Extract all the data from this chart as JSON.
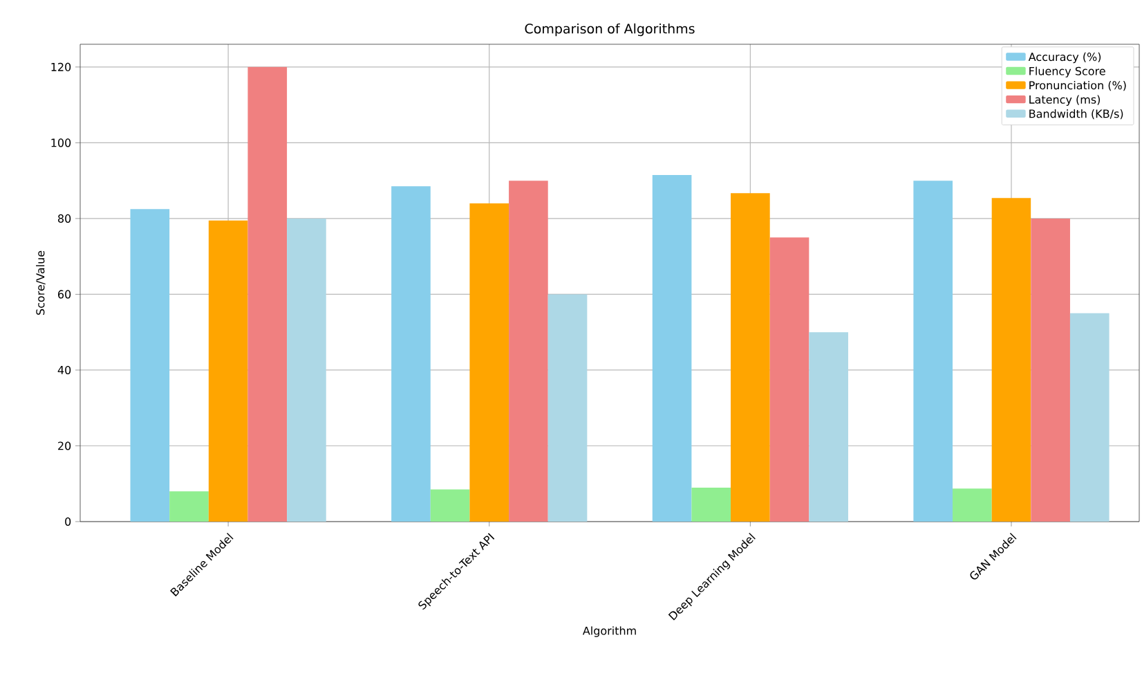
{
  "chart_data": {
    "type": "bar",
    "title": "Comparison of Algorithms",
    "xlabel": "Algorithm",
    "ylabel": "Score/Value",
    "categories": [
      "Baseline Model",
      "Speech-to-Text API",
      "Deep Learning Model",
      "GAN Model"
    ],
    "series": [
      {
        "name": "Accuracy (%)",
        "color": "#87ceeb",
        "values": [
          82.5,
          88.5,
          91.5,
          90
        ]
      },
      {
        "name": "Fluency Score",
        "color": "#90ee90",
        "values": [
          8,
          8.5,
          9,
          8.7
        ]
      },
      {
        "name": "Pronunciation (%)",
        "color": "#ffa500",
        "values": [
          79.5,
          84,
          86.7,
          85.4
        ]
      },
      {
        "name": "Latency (ms)",
        "color": "#f08080",
        "values": [
          120,
          90,
          75,
          80
        ]
      },
      {
        "name": "Bandwidth (KB/s)",
        "color": "#add8e6",
        "values": [
          80,
          60,
          50,
          55
        ]
      }
    ],
    "ylim": [
      0,
      126
    ],
    "yticks": [
      0,
      20,
      40,
      60,
      80,
      100,
      120
    ],
    "grid": true,
    "legend": "top right"
  }
}
